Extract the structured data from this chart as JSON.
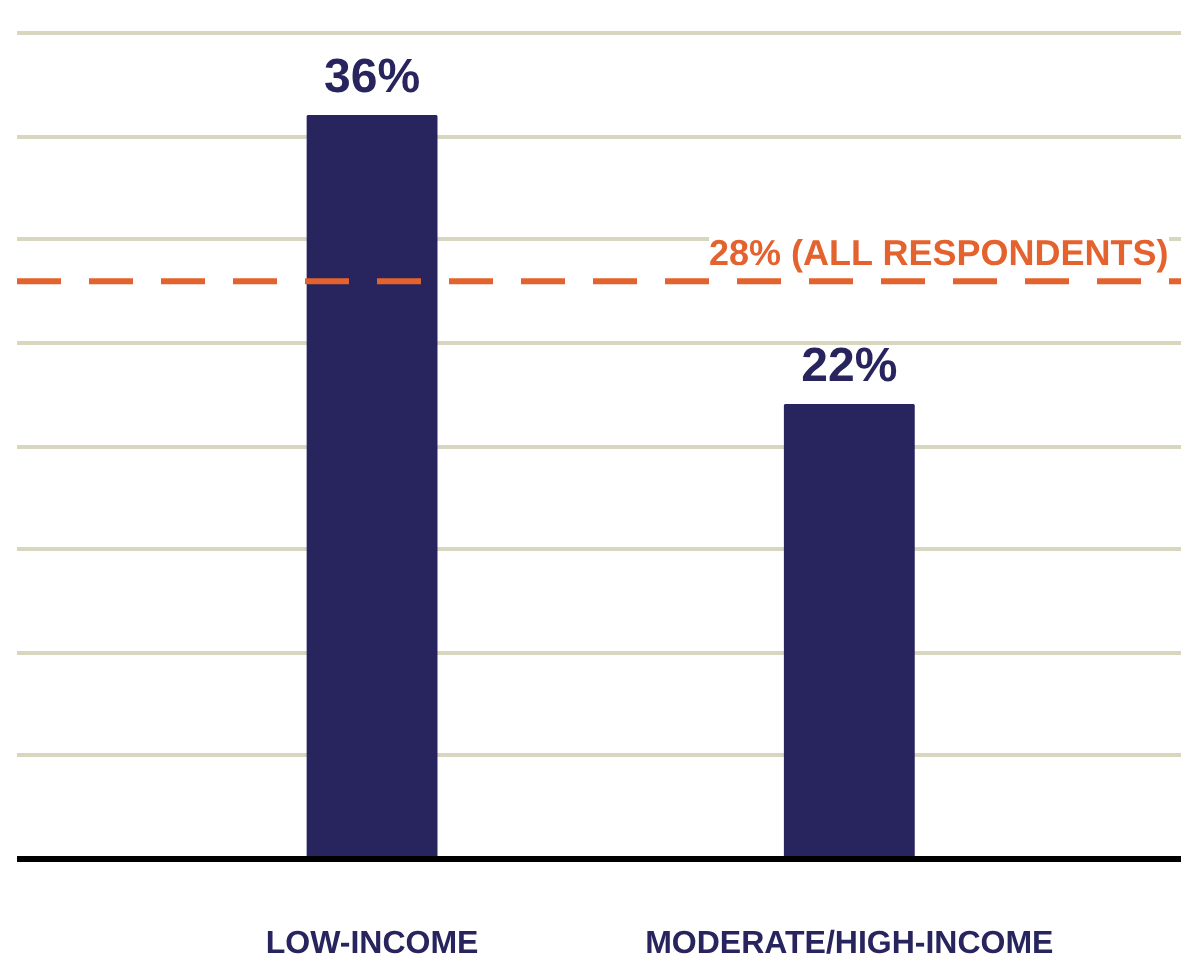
{
  "chart_data": {
    "type": "bar",
    "categories": [
      "LOW-INCOME",
      "MODERATE/HIGH-INCOME"
    ],
    "values": [
      36,
      22
    ],
    "color": "#28255e",
    "data_labels": true,
    "value_labels": [
      "36%",
      "22%"
    ],
    "yticks": [
      {
        "value": 0,
        "label": null
      },
      {
        "value": 5,
        "label": null
      },
      {
        "value": 10,
        "label": null
      },
      {
        "value": 15,
        "label": null
      },
      {
        "value": 20,
        "label": null
      },
      {
        "value": 25,
        "label": null
      },
      {
        "value": 30,
        "label": null
      },
      {
        "value": 35,
        "label": null
      },
      {
        "value": 40,
        "label": null
      }
    ],
    "tick_labels": "x",
    "grid": "y",
    "ref_lines": [
      {
        "axis": "y",
        "value": 28,
        "label": "28% (ALL RESPONDENTS)",
        "color": "#e4622d",
        "line_style": "dashed"
      }
    ]
  }
}
